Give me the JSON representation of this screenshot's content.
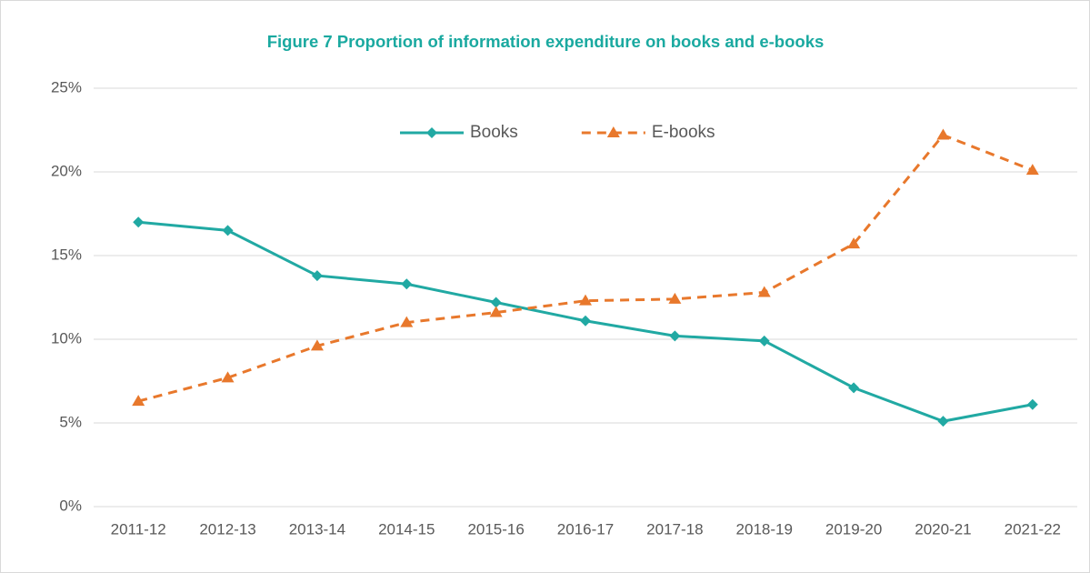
{
  "chart_data": {
    "type": "line",
    "title": "Figure 7 Proportion of information expenditure on books and e-books",
    "categories": [
      "2011-12",
      "2012-13",
      "2013-14",
      "2014-15",
      "2015-16",
      "2016-17",
      "2017-18",
      "2018-19",
      "2019-20",
      "2020-21",
      "2021-22"
    ],
    "series": [
      {
        "name": "Books",
        "color": "#21a9a3",
        "marker": "diamond",
        "line_style": "solid",
        "values": [
          17.0,
          16.5,
          13.8,
          13.3,
          12.2,
          11.1,
          10.2,
          9.9,
          7.1,
          5.1,
          6.1
        ]
      },
      {
        "name": "E-books",
        "color": "#e8782c",
        "marker": "triangle",
        "line_style": "dashed",
        "values": [
          6.3,
          7.7,
          9.6,
          11.0,
          11.6,
          12.3,
          12.4,
          12.8,
          15.7,
          22.2,
          20.1
        ]
      }
    ],
    "ylim": [
      0,
      25
    ],
    "yticks": [
      {
        "value": 0,
        "label": "0%"
      },
      {
        "value": 5,
        "label": "5%"
      },
      {
        "value": 10,
        "label": "10%"
      },
      {
        "value": 15,
        "label": "15%"
      },
      {
        "value": 20,
        "label": "20%"
      },
      {
        "value": 25,
        "label": "25%"
      }
    ],
    "grid": true,
    "legend": "top"
  }
}
